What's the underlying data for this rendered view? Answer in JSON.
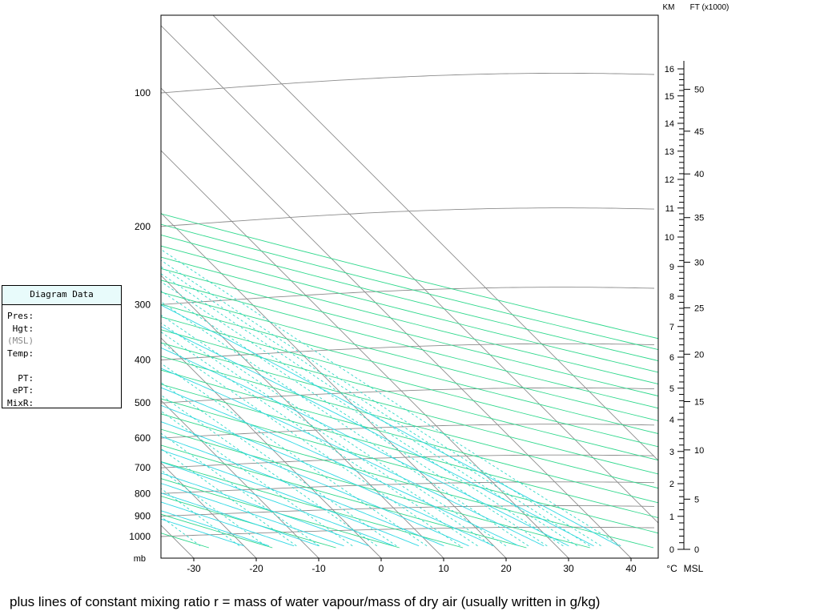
{
  "panel": {
    "title": "Diagram Data",
    "fields": {
      "pres": "Pres:",
      "hgt": " Hgt:",
      "msl": "(MSL)",
      "temp": "Temp:",
      "pt": "  PT:",
      "ept": " ePT:",
      "mixr": "MixR:"
    }
  },
  "caption": "plus lines of constant mixing ratio r = mass of water vapour/mass of dry air (usually written in g/kg)",
  "chart_data": {
    "type": "skew-t log-p diagram",
    "pressure_axis": {
      "unit_label": "mb",
      "ticks": [
        100,
        200,
        300,
        400,
        500,
        600,
        700,
        800,
        900,
        1000
      ],
      "range": [
        50,
        1060
      ],
      "scale": "log"
    },
    "temperature_axis": {
      "unit_label": "°C",
      "ticks": [
        -30,
        -20,
        -10,
        0,
        10,
        20,
        30,
        40
      ],
      "range_at_surface": [
        -36,
        44
      ]
    },
    "km_axis": {
      "label": "KM",
      "ticks": [
        0,
        1,
        2,
        3,
        4,
        5,
        6,
        7,
        8,
        9,
        10,
        11,
        12,
        13,
        14,
        15,
        16
      ]
    },
    "ft_axis": {
      "label": "FT (x1000)",
      "ticks": [
        0,
        5,
        10,
        15,
        20,
        25,
        30,
        35,
        40,
        45,
        50
      ]
    },
    "msl_label": "MSL",
    "line_colors": {
      "isobars_isotherms": "#8c8c8c",
      "dry_adiabats": "#2fd88c",
      "moist_adiabats": "#2fd8e4",
      "mixing_ratio": "#2fd8c8"
    }
  }
}
